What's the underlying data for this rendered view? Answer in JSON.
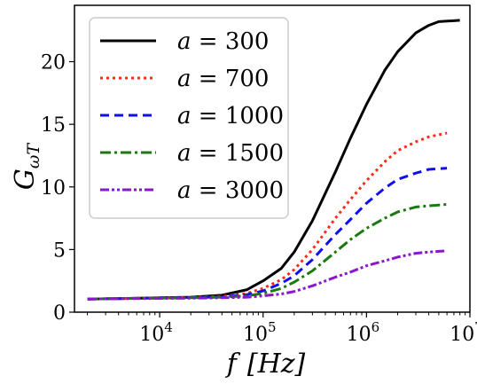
{
  "chart_data": {
    "type": "line",
    "xlabel_var": "f",
    "xlabel_unit": "[Hz]",
    "ylabel_main": "G",
    "ylabel_sub": "ωT",
    "x_scale": "log",
    "xlim": [
      1500,
      10000000
    ],
    "ylim": [
      0,
      24.5
    ],
    "y_ticks": [
      "0",
      "5",
      "10",
      "15",
      "20"
    ],
    "y_tick_values": [
      0,
      5,
      10,
      15,
      20
    ],
    "x_ticks": [
      {
        "base": "10",
        "exp": "4",
        "value": 10000
      },
      {
        "base": "10",
        "exp": "5",
        "value": 100000
      },
      {
        "base": "10",
        "exp": "6",
        "value": 1000000
      },
      {
        "base": "10",
        "exp": "7",
        "value": 10000000
      }
    ],
    "legend_position": "top-left",
    "grid": false,
    "series": [
      {
        "name_var": "a",
        "name_eq": " = 300",
        "color": "#000000",
        "dash": "none",
        "x": [
          2000,
          5000,
          10000,
          20000,
          40000,
          70000,
          100000,
          150000,
          200000,
          300000,
          500000,
          700000,
          1000000,
          1500000,
          2000000,
          3000000,
          4000000,
          5000000,
          8000000
        ],
        "y": [
          1.05,
          1.1,
          1.15,
          1.2,
          1.35,
          1.8,
          2.5,
          3.5,
          4.8,
          7.3,
          11.2,
          13.9,
          16.6,
          19.3,
          20.8,
          22.3,
          22.9,
          23.2,
          23.3
        ]
      },
      {
        "name_var": "a",
        "name_eq": " = 700",
        "color": "#ff2a1a",
        "dash": "3,4",
        "x": [
          2000,
          5000,
          10000,
          20000,
          40000,
          70000,
          100000,
          150000,
          200000,
          300000,
          500000,
          700000,
          1000000,
          1500000,
          2000000,
          3000000,
          4000000,
          6000000
        ],
        "y": [
          1.05,
          1.1,
          1.13,
          1.18,
          1.25,
          1.5,
          1.9,
          2.6,
          3.4,
          5.0,
          7.5,
          9.0,
          10.5,
          12.0,
          12.9,
          13.6,
          14.0,
          14.3
        ]
      },
      {
        "name_var": "a",
        "name_eq": " = 1000",
        "color": "#1010ee",
        "dash": "10,6",
        "x": [
          2000,
          5000,
          10000,
          20000,
          40000,
          70000,
          100000,
          150000,
          200000,
          300000,
          500000,
          700000,
          1000000,
          1500000,
          2000000,
          3000000,
          4000000,
          6000000
        ],
        "y": [
          1.05,
          1.1,
          1.13,
          1.17,
          1.22,
          1.4,
          1.7,
          2.3,
          2.9,
          4.2,
          6.2,
          7.4,
          8.7,
          9.9,
          10.6,
          11.1,
          11.4,
          11.5
        ]
      },
      {
        "name_var": "a",
        "name_eq": " = 1500",
        "color": "#1a7a10",
        "dash": "12,4,3,4",
        "x": [
          2000,
          5000,
          10000,
          20000,
          40000,
          70000,
          100000,
          150000,
          200000,
          300000,
          500000,
          700000,
          1000000,
          1500000,
          2000000,
          3000000,
          4000000,
          6000000
        ],
        "y": [
          1.05,
          1.1,
          1.12,
          1.15,
          1.2,
          1.3,
          1.5,
          1.9,
          2.4,
          3.3,
          4.8,
          5.8,
          6.7,
          7.5,
          8.0,
          8.4,
          8.5,
          8.6
        ]
      },
      {
        "name_var": "a",
        "name_eq": " = 3000",
        "color": "#8a17cc",
        "dash": "10,3,3,3,3,3",
        "x": [
          2000,
          5000,
          10000,
          20000,
          40000,
          70000,
          100000,
          150000,
          200000,
          300000,
          500000,
          700000,
          1000000,
          1500000,
          2000000,
          3000000,
          4000000,
          6000000
        ],
        "y": [
          1.05,
          1.08,
          1.1,
          1.12,
          1.15,
          1.2,
          1.3,
          1.45,
          1.65,
          2.1,
          2.8,
          3.2,
          3.7,
          4.1,
          4.4,
          4.7,
          4.8,
          4.9
        ]
      }
    ]
  }
}
